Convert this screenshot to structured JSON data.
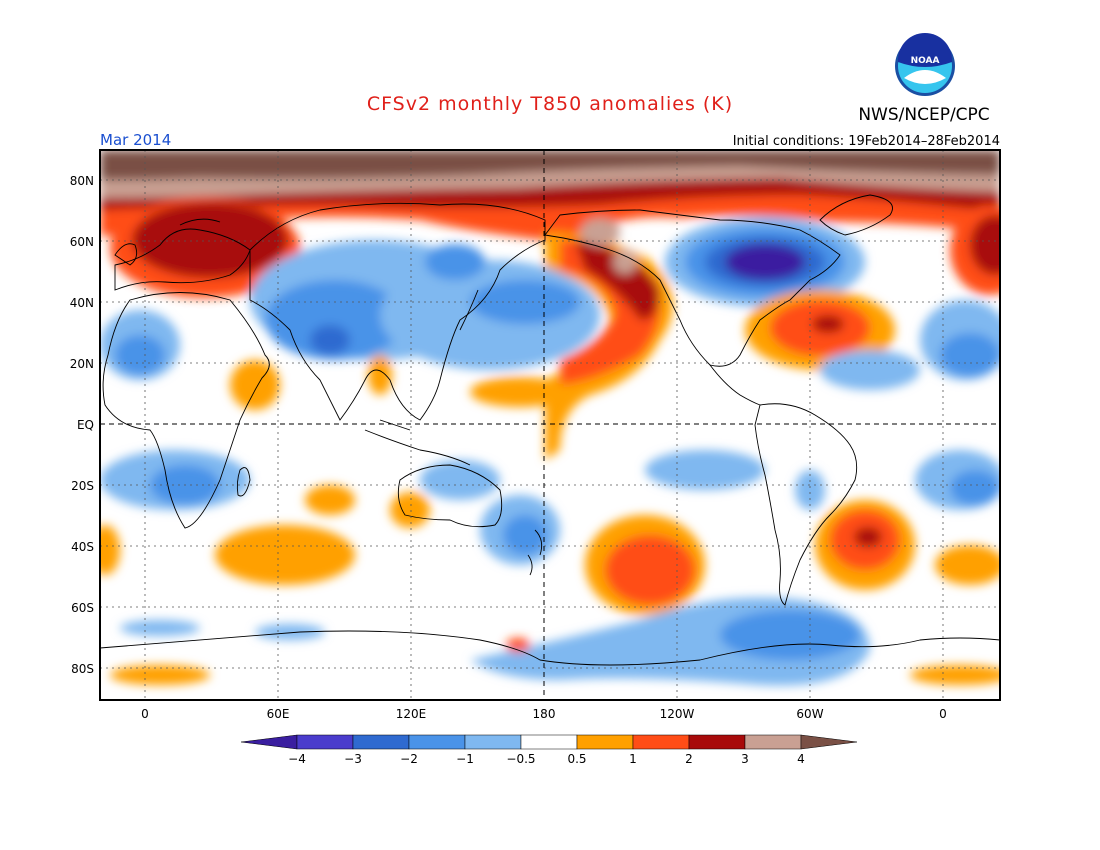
{
  "title": "CFSv2 monthly T850 anomalies (K)",
  "org": "NWS/NCEP/CPC",
  "logo_text": "NOAA",
  "valid_month": "Mar 2014",
  "initial_conditions": "Initial conditions: 19Feb2014–28Feb2014",
  "lat_labels": [
    "80N",
    "60N",
    "40N",
    "20N",
    "EQ",
    "20S",
    "40S",
    "60S",
    "80S"
  ],
  "lon_labels": [
    "0",
    "60E",
    "120E",
    "180",
    "120W",
    "60W",
    "0"
  ],
  "colorbar": {
    "tick_labels": [
      "−4",
      "−3",
      "−2",
      "−1",
      "−0.5",
      "0.5",
      "1",
      "2",
      "3",
      "4"
    ],
    "colors": [
      "#3a1ea0",
      "#4a3ccc",
      "#2f6ad0",
      "#4a93e8",
      "#7fb8f0",
      "#ffffff",
      "#ffa000",
      "#ff4d17",
      "#a80a0a",
      "#c9a093",
      "#7a5045"
    ]
  }
}
